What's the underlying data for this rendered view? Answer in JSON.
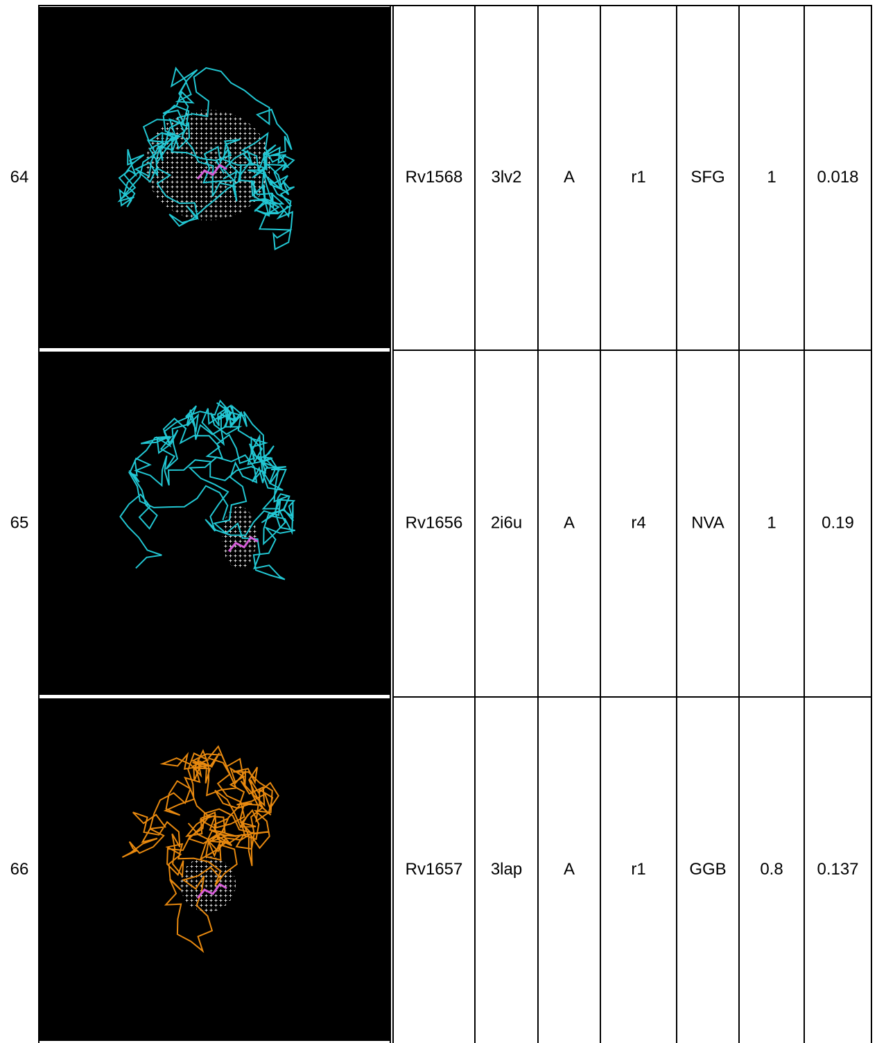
{
  "table": {
    "rows": [
      {
        "index": "64",
        "cells": [
          "Rv1568",
          "3lv2",
          "A",
          "r1",
          "SFG",
          "1",
          "0.018"
        ]
      },
      {
        "index": "65",
        "cells": [
          "Rv1656",
          "2i6u",
          "A",
          "r4",
          "NVA",
          "1",
          "0.19"
        ]
      },
      {
        "index": "66",
        "cells": [
          "Rv1657",
          "3lap",
          "A",
          "r1",
          "GGB",
          "0.8",
          "0.137"
        ]
      }
    ]
  }
}
